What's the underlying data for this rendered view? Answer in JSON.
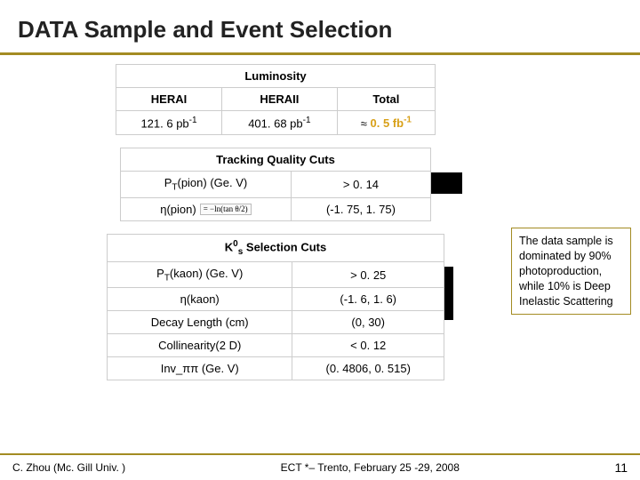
{
  "colors": {
    "border": "#a38b22",
    "orange": "#d8a018",
    "text": "#222222"
  },
  "title": "DATA Sample and Event Selection",
  "luminosity": {
    "header": "Luminosity",
    "cols": [
      "HERAI",
      "HERAII",
      "Total"
    ],
    "vals": [
      "121. 6 pb",
      "401. 68 pb"
    ],
    "total_prefix": "≈ ",
    "total_val": "0. 5 fb",
    "exp": "-1"
  },
  "tracking": {
    "header": "Tracking Quality Cuts",
    "rows": [
      {
        "label_html": "P<span class='sub'>T</span>(pion) (Ge. V)",
        "val": "> 0. 14"
      },
      {
        "label_html": "η(pion)",
        "eta": true,
        "eta_formula": "= −ln(tan θ/2)",
        "val": "(-1. 75, 1. 75)"
      }
    ]
  },
  "kaon": {
    "header_prefix": "K",
    "header_sup": "0",
    "header_sub": "s",
    "header_rest": " Selection Cuts",
    "rows": [
      {
        "label_html": "P<span class='sub'>T</span>(kaon) (Ge. V)",
        "val": "> 0. 25"
      },
      {
        "label_html": "η(kaon)",
        "val": "(-1. 6, 1. 6)"
      },
      {
        "label_html": "Decay Length (cm)",
        "val": "(0, 30)"
      },
      {
        "label_html": "Collinearity(2 D)",
        "val": "< 0. 12"
      },
      {
        "label_html": "Inv_ππ (Ge. V)",
        "val": "(0. 4806, 0. 515)"
      }
    ]
  },
  "note": "The data sample is dominated by 90% photoproduction, while 10% is Deep Inelastic Scattering",
  "footer": {
    "left": "C. Zhou (Mc. Gill Univ. )",
    "center": "ECT *– Trento, February 25 -29, 2008",
    "page": "11"
  }
}
